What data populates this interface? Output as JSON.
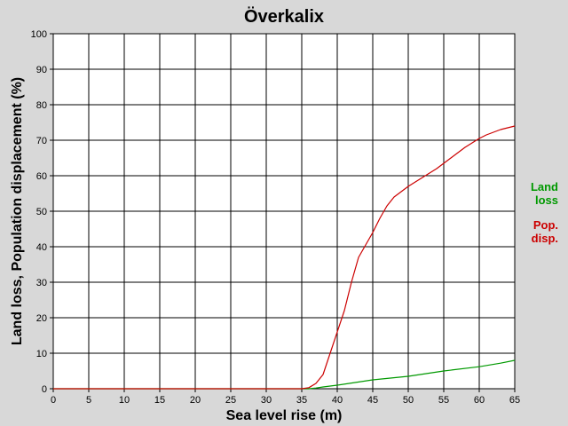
{
  "chart_data": {
    "type": "line",
    "title": "Överkalix",
    "xlabel": "Sea level rise (m)",
    "ylabel": "Land loss, Population displacement (%)",
    "xlim": [
      0,
      65
    ],
    "ylim": [
      0,
      100
    ],
    "x_ticks": [
      0,
      5,
      10,
      15,
      20,
      25,
      30,
      35,
      40,
      45,
      50,
      55,
      60,
      65
    ],
    "y_ticks": [
      0,
      10,
      20,
      30,
      40,
      50,
      60,
      70,
      80,
      90,
      100
    ],
    "grid": true,
    "legend_position": "right",
    "series": [
      {
        "name": "Land loss",
        "legend_lines": [
          "Land",
          "loss"
        ],
        "color": "#009900",
        "x": [
          0,
          35,
          36,
          37,
          38,
          40,
          45,
          50,
          55,
          60,
          63,
          65
        ],
        "y": [
          0,
          0,
          0,
          0.2,
          0.5,
          1,
          2.5,
          3.5,
          5,
          6.2,
          7.2,
          8
        ]
      },
      {
        "name": "Pop. disp.",
        "legend_lines": [
          "Pop.",
          "disp."
        ],
        "color": "#cc0000",
        "x": [
          0,
          35,
          36,
          37,
          38,
          39,
          40,
          41,
          42,
          43,
          44,
          45,
          46,
          47,
          48,
          49,
          50,
          52,
          54,
          56,
          58,
          60,
          61,
          63,
          65
        ],
        "y": [
          0,
          0,
          0.3,
          1.5,
          4,
          10,
          16,
          22,
          30,
          37,
          40.5,
          44,
          48,
          51.5,
          54,
          55.5,
          57,
          59.5,
          62,
          65,
          68,
          70.5,
          71.5,
          73,
          74
        ]
      }
    ]
  }
}
